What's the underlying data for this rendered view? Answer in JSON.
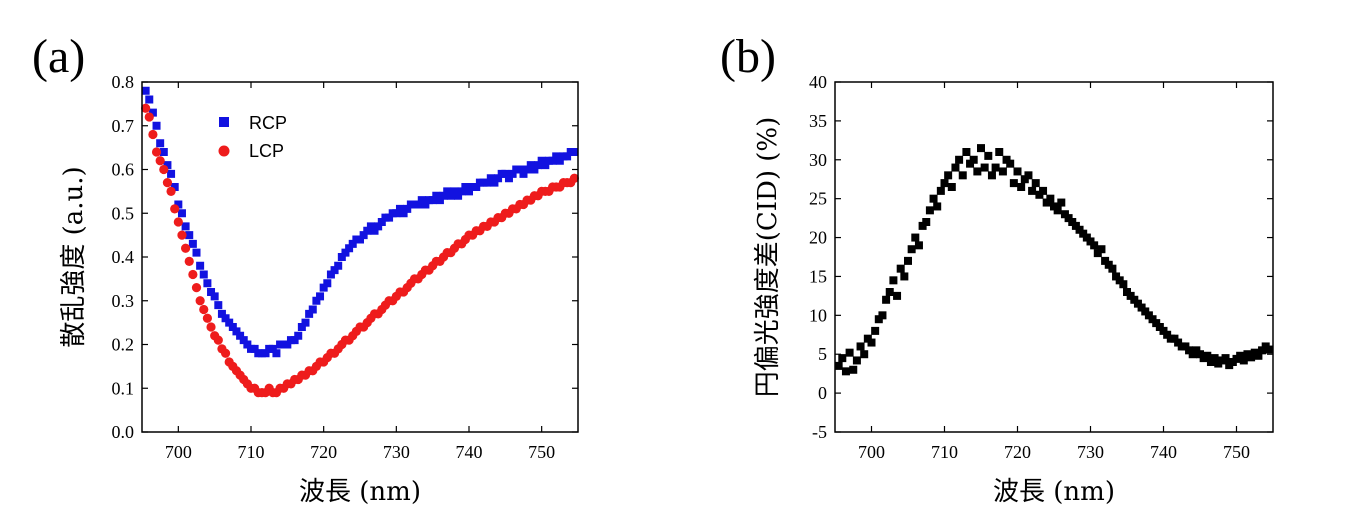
{
  "chart_data": [
    {
      "panel": "(a)",
      "type": "scatter",
      "xlabel": "波長 (nm)",
      "ylabel": "散乱強度 (a.u.)",
      "xlim": [
        695,
        755
      ],
      "ylim": [
        0.0,
        0.8
      ],
      "xticks": [
        700,
        710,
        720,
        730,
        740,
        750
      ],
      "yticks": [
        "0.0",
        "0.1",
        "0.2",
        "0.3",
        "0.4",
        "0.5",
        "0.6",
        "0.7",
        "0.8"
      ],
      "legend_position": "top-left",
      "series": [
        {
          "name": "RCP",
          "marker": "square",
          "color": "#1212e0",
          "x": [
            695.5,
            696,
            696.5,
            697,
            697.5,
            698,
            698.5,
            699,
            699.5,
            700,
            700.5,
            701,
            701.5,
            702,
            702.5,
            703,
            703.5,
            704,
            704.5,
            705,
            705.5,
            706,
            706.5,
            707,
            707.5,
            708,
            708.5,
            709,
            709.5,
            710,
            710.5,
            711,
            711.5,
            712,
            712.5,
            713,
            713.5,
            714,
            714.5,
            715,
            715.5,
            716,
            716.5,
            717,
            717.5,
            718,
            718.5,
            719,
            719.5,
            720,
            720.5,
            721,
            721.5,
            722,
            722.5,
            723,
            723.5,
            724,
            724.5,
            725,
            725.5,
            726,
            726.5,
            727,
            727.5,
            728,
            728.5,
            729,
            729.5,
            730,
            730.5,
            731,
            731.5,
            732,
            732.5,
            733,
            733.5,
            734,
            734.5,
            735,
            735.5,
            736,
            736.5,
            737,
            737.5,
            738,
            738.5,
            739,
            739.5,
            740,
            740.5,
            741,
            741.5,
            742,
            742.5,
            743,
            743.5,
            744,
            744.5,
            745,
            745.5,
            746,
            746.5,
            747,
            747.5,
            748,
            748.5,
            749,
            749.5,
            750,
            750.5,
            751,
            751.5,
            752,
            752.5,
            753,
            753.5,
            754,
            754.5
          ],
          "y": [
            0.78,
            0.76,
            0.73,
            0.7,
            0.66,
            0.64,
            0.61,
            0.59,
            0.56,
            0.52,
            0.5,
            0.47,
            0.45,
            0.43,
            0.41,
            0.38,
            0.36,
            0.34,
            0.32,
            0.31,
            0.29,
            0.27,
            0.26,
            0.25,
            0.24,
            0.23,
            0.22,
            0.21,
            0.2,
            0.19,
            0.19,
            0.18,
            0.18,
            0.18,
            0.19,
            0.19,
            0.18,
            0.2,
            0.2,
            0.2,
            0.21,
            0.21,
            0.22,
            0.24,
            0.25,
            0.27,
            0.28,
            0.3,
            0.31,
            0.33,
            0.34,
            0.36,
            0.37,
            0.38,
            0.4,
            0.41,
            0.42,
            0.43,
            0.44,
            0.44,
            0.45,
            0.46,
            0.47,
            0.46,
            0.47,
            0.48,
            0.49,
            0.49,
            0.5,
            0.5,
            0.51,
            0.5,
            0.51,
            0.52,
            0.52,
            0.52,
            0.53,
            0.52,
            0.53,
            0.53,
            0.54,
            0.53,
            0.54,
            0.55,
            0.54,
            0.55,
            0.54,
            0.55,
            0.56,
            0.55,
            0.56,
            0.56,
            0.57,
            0.57,
            0.57,
            0.58,
            0.57,
            0.58,
            0.59,
            0.59,
            0.58,
            0.59,
            0.6,
            0.6,
            0.59,
            0.6,
            0.61,
            0.6,
            0.61,
            0.62,
            0.61,
            0.62,
            0.62,
            0.63,
            0.62,
            0.63,
            0.63,
            0.64,
            0.64
          ]
        },
        {
          "name": "LCP",
          "marker": "circle",
          "color": "#ee1c1c",
          "x": [
            695.5,
            696,
            696.5,
            697,
            697.5,
            698,
            698.5,
            699,
            699.5,
            700,
            700.5,
            701,
            701.5,
            702,
            702.5,
            703,
            703.5,
            704,
            704.5,
            705,
            705.5,
            706,
            706.5,
            707,
            707.5,
            708,
            708.5,
            709,
            709.5,
            710,
            710.5,
            711,
            711.5,
            712,
            712.5,
            713,
            713.5,
            714,
            714.5,
            715,
            715.5,
            716,
            716.5,
            717,
            717.5,
            718,
            718.5,
            719,
            719.5,
            720,
            720.5,
            721,
            721.5,
            722,
            722.5,
            723,
            723.5,
            724,
            724.5,
            725,
            725.5,
            726,
            726.5,
            727,
            727.5,
            728,
            728.5,
            729,
            729.5,
            730,
            730.5,
            731,
            731.5,
            732,
            732.5,
            733,
            733.5,
            734,
            734.5,
            735,
            735.5,
            736,
            736.5,
            737,
            737.5,
            738,
            738.5,
            739,
            739.5,
            740,
            740.5,
            741,
            741.5,
            742,
            742.5,
            743,
            743.5,
            744,
            744.5,
            745,
            745.5,
            746,
            746.5,
            747,
            747.5,
            748,
            748.5,
            749,
            749.5,
            750,
            750.5,
            751,
            751.5,
            752,
            752.5,
            753,
            753.5,
            754,
            754.5
          ],
          "y": [
            0.74,
            0.72,
            0.68,
            0.64,
            0.62,
            0.6,
            0.57,
            0.55,
            0.51,
            0.48,
            0.45,
            0.42,
            0.39,
            0.36,
            0.33,
            0.3,
            0.28,
            0.26,
            0.24,
            0.22,
            0.21,
            0.19,
            0.18,
            0.16,
            0.15,
            0.14,
            0.13,
            0.12,
            0.11,
            0.1,
            0.1,
            0.09,
            0.09,
            0.09,
            0.1,
            0.09,
            0.09,
            0.1,
            0.1,
            0.11,
            0.11,
            0.12,
            0.12,
            0.13,
            0.13,
            0.14,
            0.14,
            0.15,
            0.16,
            0.16,
            0.17,
            0.18,
            0.18,
            0.19,
            0.2,
            0.21,
            0.21,
            0.22,
            0.23,
            0.24,
            0.24,
            0.25,
            0.26,
            0.27,
            0.27,
            0.28,
            0.29,
            0.3,
            0.3,
            0.31,
            0.32,
            0.32,
            0.33,
            0.34,
            0.35,
            0.35,
            0.36,
            0.37,
            0.37,
            0.38,
            0.39,
            0.39,
            0.4,
            0.41,
            0.41,
            0.42,
            0.43,
            0.43,
            0.44,
            0.45,
            0.45,
            0.46,
            0.46,
            0.47,
            0.47,
            0.48,
            0.48,
            0.49,
            0.49,
            0.5,
            0.5,
            0.51,
            0.51,
            0.52,
            0.52,
            0.53,
            0.53,
            0.54,
            0.54,
            0.55,
            0.55,
            0.55,
            0.56,
            0.56,
            0.56,
            0.57,
            0.57,
            0.57,
            0.58
          ]
        }
      ]
    },
    {
      "panel": "(b)",
      "type": "scatter",
      "xlabel": "波長 (nm)",
      "ylabel": "円偏光強度差(CID) (%)",
      "xlim": [
        695,
        755
      ],
      "ylim": [
        -5,
        40
      ],
      "xticks": [
        700,
        710,
        720,
        730,
        740,
        750
      ],
      "yticks": [
        "-5",
        "0",
        "5",
        "10",
        "15",
        "20",
        "25",
        "30",
        "35",
        "40"
      ],
      "series": [
        {
          "marker": "square",
          "color": "#000000",
          "x": [
            695.5,
            696,
            696.5,
            697,
            697.5,
            698,
            698.5,
            699,
            699.5,
            700,
            700.5,
            701,
            701.5,
            702,
            702.5,
            703,
            703.5,
            704,
            704.5,
            705,
            705.5,
            706,
            706.5,
            707,
            707.5,
            708,
            708.5,
            709,
            709.5,
            710,
            710.5,
            711,
            711.5,
            712,
            712.5,
            713,
            713.5,
            714,
            714.5,
            715,
            715.5,
            716,
            716.5,
            717,
            717.5,
            718,
            718.5,
            719,
            719.5,
            720,
            720.5,
            721,
            721.5,
            722,
            722.5,
            723,
            723.5,
            724,
            724.5,
            725,
            725.5,
            726,
            726.5,
            727,
            727.5,
            728,
            728.5,
            729,
            729.5,
            730,
            730.5,
            731,
            731.5,
            732,
            732.5,
            733,
            733.5,
            734,
            734.5,
            735,
            735.5,
            736,
            736.5,
            737,
            737.5,
            738,
            738.5,
            739,
            739.5,
            740,
            740.5,
            741,
            741.5,
            742,
            742.5,
            743,
            743.5,
            744,
            744.5,
            745,
            745.5,
            746,
            746.5,
            747,
            747.5,
            748,
            748.5,
            749,
            749.5,
            750,
            750.5,
            751,
            751.5,
            752,
            752.5,
            753,
            753.5,
            754,
            754.5
          ],
          "y": [
            3.5,
            4.5,
            2.8,
            5.2,
            3.0,
            4.2,
            6.0,
            5.0,
            7.0,
            6.5,
            8.0,
            9.5,
            10.0,
            12.0,
            13.0,
            14.5,
            12.5,
            16.0,
            15.0,
            17.0,
            18.5,
            20.0,
            19.0,
            21.5,
            22.0,
            23.5,
            25.0,
            24.0,
            26.0,
            27.0,
            28.0,
            26.5,
            29.0,
            30.0,
            28.0,
            31.0,
            29.5,
            30.0,
            28.5,
            31.5,
            29.0,
            30.5,
            28.0,
            29.0,
            31.0,
            28.5,
            30.0,
            29.5,
            27.0,
            28.5,
            26.5,
            27.5,
            28.0,
            26.0,
            27.0,
            25.5,
            26.0,
            24.5,
            25.0,
            24.0,
            23.5,
            24.5,
            23.0,
            22.5,
            22.0,
            21.5,
            21.0,
            20.5,
            20.0,
            19.5,
            19.0,
            18.0,
            18.5,
            17.0,
            16.5,
            16.0,
            15.0,
            14.5,
            14.0,
            13.0,
            12.5,
            12.0,
            11.5,
            11.0,
            10.5,
            10.0,
            9.5,
            9.0,
            8.5,
            8.0,
            7.5,
            7.0,
            7.0,
            6.5,
            6.0,
            6.0,
            5.5,
            5.0,
            5.5,
            5.0,
            4.5,
            4.8,
            4.0,
            4.5,
            3.8,
            4.2,
            4.5,
            3.6,
            4.0,
            4.4,
            4.8,
            4.2,
            5.0,
            4.6,
            5.2,
            4.8,
            5.5,
            6.0,
            5.6
          ]
        }
      ]
    }
  ]
}
